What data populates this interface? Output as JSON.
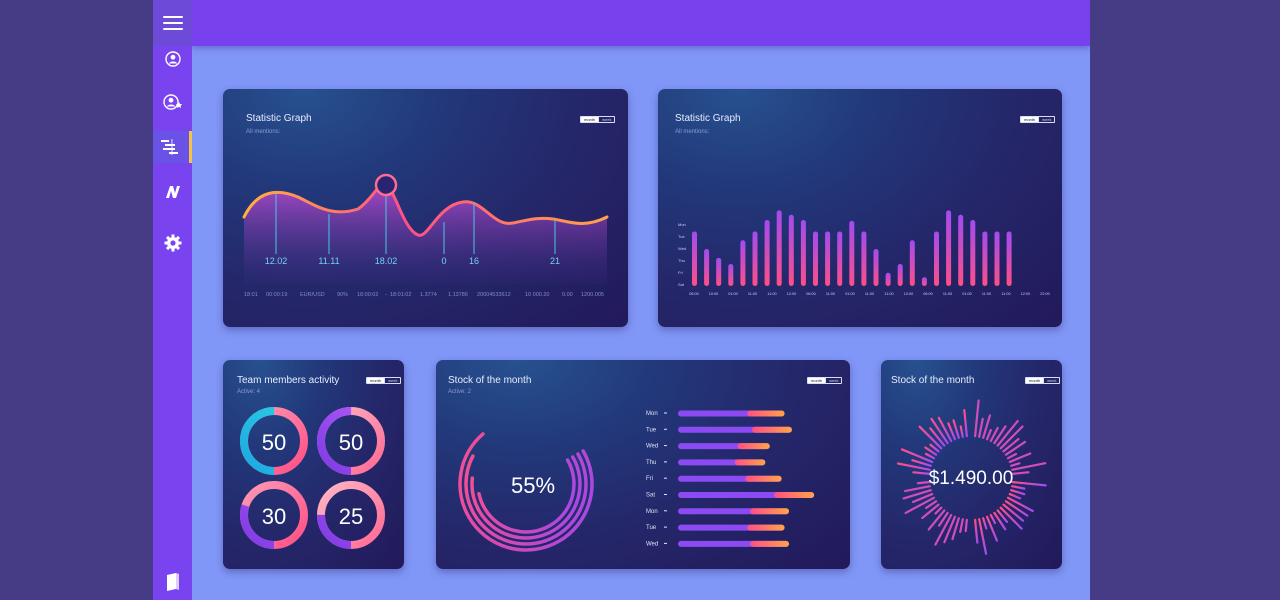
{
  "toggle": {
    "month": "month",
    "week": "week"
  },
  "sidebar": {
    "items": [
      {
        "name": "user-icon"
      },
      {
        "name": "user-favorite-icon"
      },
      {
        "name": "gantt-icon"
      },
      {
        "name": "n-logo-icon"
      },
      {
        "name": "gear-icon"
      }
    ],
    "bottom": {
      "name": "book-icon"
    }
  },
  "colors": {
    "sidebar": "#7a43f0",
    "topbar": "#7841ee",
    "page": "#8197f7",
    "accent_active": "#f6c443",
    "pink": "#ff4f86",
    "purple": "#8c4bf2",
    "orange": "#ffaa3f",
    "teal": "#27c8e4"
  },
  "card1": {
    "title": "Statistic Graph",
    "subtitle": "All mentions:",
    "markers": [
      "12.02",
      "11.11",
      "18.02",
      "0",
      "16",
      "21"
    ],
    "footer": [
      "18:01",
      "00:00:19",
      "EUR/USD",
      "90%",
      "18:00:02",
      "-",
      "18:01:02",
      "1.3774",
      "1.13786",
      "20004533612",
      "10 000.20",
      "0.00",
      "1200.005"
    ]
  },
  "card2": {
    "title": "Statistic Graph",
    "subtitle": "All mentions:",
    "ylabels": [
      "Mon",
      "Tue",
      "Wed",
      "Thu",
      "Fri",
      "Sat"
    ],
    "xlabels": [
      "06:00",
      "10:00",
      "01:00",
      "11:00",
      "11:00",
      "12:00",
      "06:00",
      "11:00",
      "01:00",
      "11:00",
      "11:00",
      "12:00",
      "06:00",
      "11:00",
      "01:00",
      "11:00",
      "11:00",
      "12:00",
      "22:00"
    ],
    "bars": [
      0.62,
      0.42,
      0.32,
      0.25,
      0.52,
      0.62,
      0.75,
      0.86,
      0.81,
      0.75,
      0.62,
      0.62,
      0.62,
      0.74,
      0.62,
      0.42,
      0.15,
      0.25,
      0.52,
      0.1,
      0.62,
      0.86,
      0.81,
      0.75,
      0.62,
      0.62,
      0.62
    ]
  },
  "card3": {
    "title": "Team members activity",
    "subtitle": "Active: 4",
    "donuts": [
      {
        "value": "50",
        "pct": 0.5
      },
      {
        "value": "50",
        "pct": 0.5
      },
      {
        "value": "30",
        "pct": 0.3
      },
      {
        "value": "25",
        "pct": 0.25
      }
    ]
  },
  "card4": {
    "title": "Stock of the month",
    "subtitle": "Active: 2",
    "percent": "55%",
    "progress": 0.55,
    "rows": [
      {
        "day": "Mon",
        "value": 0.72
      },
      {
        "day": "Tue",
        "value": 0.77
      },
      {
        "day": "Wed",
        "value": 0.62
      },
      {
        "day": "Thu",
        "value": 0.59
      },
      {
        "day": "Fri",
        "value": 0.7
      },
      {
        "day": "Sat",
        "value": 0.92
      },
      {
        "day": "Mon",
        "value": 0.75
      },
      {
        "day": "Tue",
        "value": 0.72
      },
      {
        "day": "Wed",
        "value": 0.75
      }
    ]
  },
  "card5": {
    "title": "Stock of the month",
    "amount": "$1.490.00"
  }
}
